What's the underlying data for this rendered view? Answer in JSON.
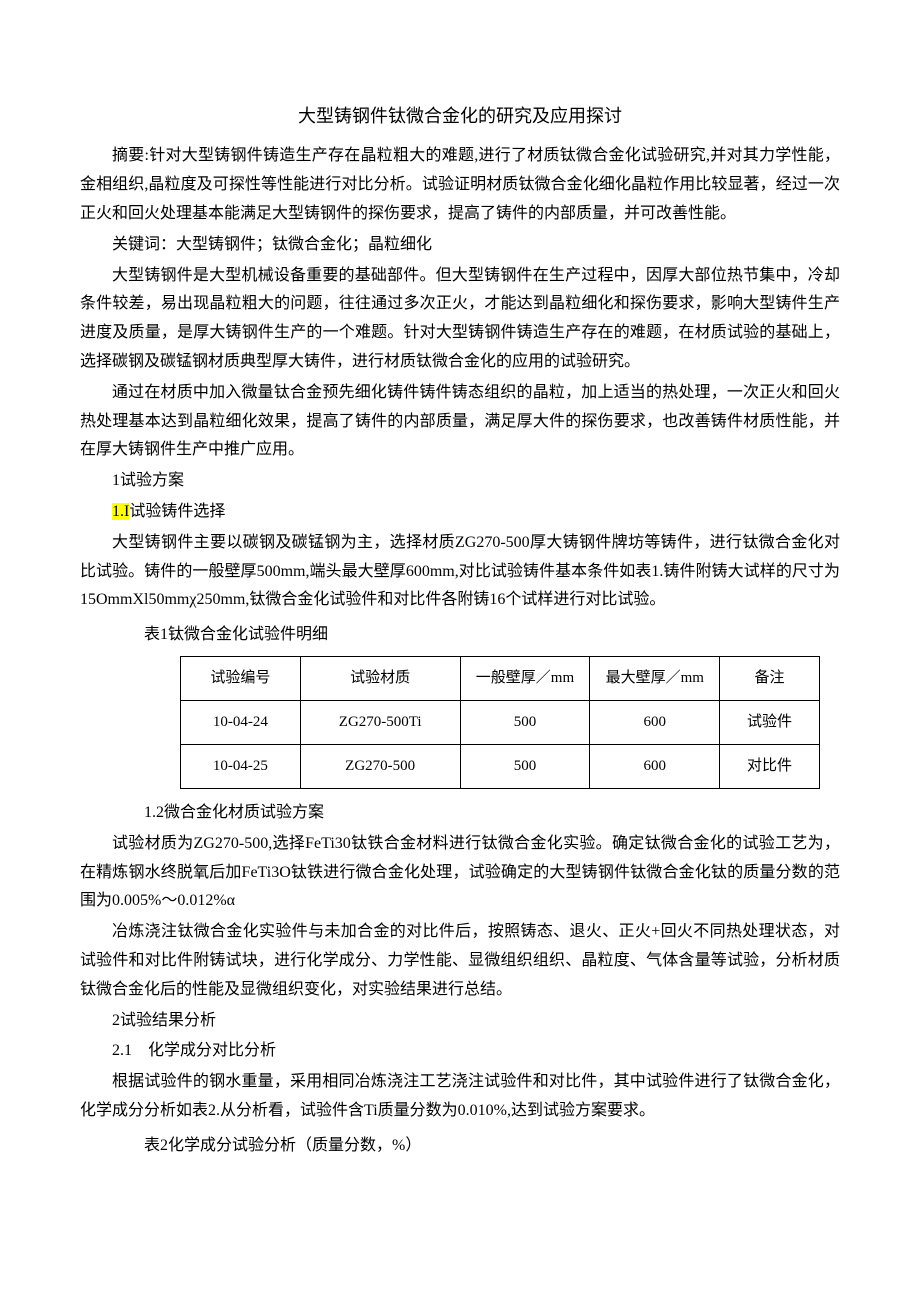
{
  "title": "大型铸钢件钛微合金化的研究及应用探讨",
  "abstract": "摘要:针对大型铸钢件铸造生产存在晶粒粗大的难题,进行了材质钛微合金化试验研究,并对其力学性能，金相组织,晶粒度及可探性等性能进行对比分析。试验证明材质钛微合金化细化晶粒作用比较显著，经过一次正火和回火处理基本能满足大型铸钢件的探伤要求，提高了铸件的内部质量，并可改善性能。",
  "keywords": "关键词：大型铸钢件；钛微合金化；晶粒细化",
  "intro1": "大型铸钢件是大型机械设备重要的基础部件。但大型铸钢件在生产过程中，因厚大部位热节集中，冷却条件较差，易出现晶粒粗大的问题，往往通过多次正火，才能达到晶粒细化和探伤要求，影响大型铸件生产进度及质量，是厚大铸钢件生产的一个难题。针对大型铸钢件铸造生产存在的难题，在材质试验的基础上，选择碳钢及碳锰钢材质典型厚大铸件，进行材质钛微合金化的应用的试验研究。",
  "intro2": "通过在材质中加入微量钛合金预先细化铸件铸件铸态组织的晶粒，加上适当的热处理，一次正火和回火热处理基本达到晶粒细化效果，提高了铸件的内部质量，满足厚大件的探伤要求，也改善铸件材质性能，并在厚大铸钢件生产中推广应用。",
  "h1": "1试验方案",
  "h1_1_prefix": "1.I",
  "h1_1_rest": "试验铸件选择",
  "p1_1": "大型铸钢件主要以碳钢及碳锰钢为主，选择材质ZG270-500厚大铸钢件牌坊等铸件，进行钛微合金化对比试验。铸件的一般壁厚500mm,端头最大壁厚600mm,对比试验铸件基本条件如表1.铸件附铸大试样的尺寸为15OmmXl50mmχ250mm,钛微合金化试验件和对比件各附铸16个试样进行对比试验。",
  "table1_caption": "表1钛微合金化试验件明细",
  "table1": {
    "headers": [
      "试验编号",
      "试验材质",
      "一般壁厚／mm",
      "最大壁厚／mm",
      "备注"
    ],
    "rows": [
      [
        "10-04-24",
        "ZG270-500Ti",
        "500",
        "600",
        "试验件"
      ],
      [
        "10-04-25",
        "ZG270-500",
        "500",
        "600",
        "对比件"
      ]
    ],
    "col_widths": [
      "120px",
      "160px",
      "130px",
      "130px",
      "100px"
    ]
  },
  "h1_2": "1.2微合金化材质试验方案",
  "p1_2a": "试验材质为ZG270-500,选择FeTi30钛铁合金材料进行钛微合金化实验。确定钛微合金化的试验工艺为，在精炼钢水终脱氧后加FeTi3O钛铁进行微合金化处理，试验确定的大型铸钢件钛微合金化钛的质量分数的范围为0.005%～0.012%α",
  "p1_2b": "冶炼浇注钛微合金化实验件与未加合金的对比件后，按照铸态、退火、正火+回火不同热处理状态，对试验件和对比件附铸试块，进行化学成分、力学性能、显微组织组织、晶粒度、气体含量等试验，分析材质钛微合金化后的性能及显微组织变化，对实验结果进行总结。",
  "h2": "2试验结果分析",
  "h2_1": "2.1　化学成分对比分析",
  "p2_1": "根据试验件的钢水重量，采用相同冶炼浇注工艺浇注试验件和对比件，其中试验件进行了钛微合金化，化学成分分析如表2.从分析看，试验件含Ti质量分数为0.010%,达到试验方案要求。",
  "table2_caption": "表2化学成分试验分析（质量分数，%）"
}
